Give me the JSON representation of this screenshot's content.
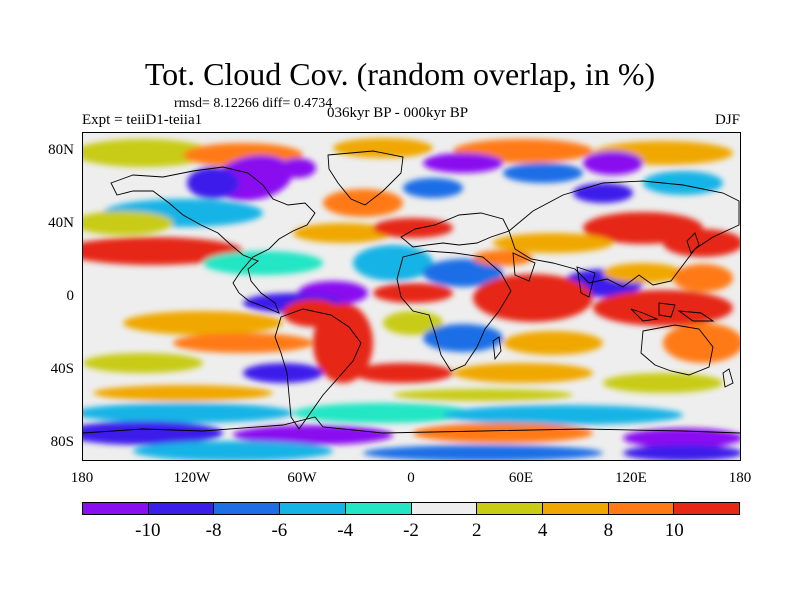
{
  "title": "Tot. Cloud Cov. (random overlap, in %)",
  "stats": "rmsd= 8.12266 diff= 0.4734",
  "experiment": "Expt = teiiD1-teiia1",
  "period": "036kyr BP - 000kyr BP",
  "season": "DJF",
  "axes": {
    "y_ticks": [
      "80N",
      "40N",
      "0",
      "40S",
      "80S"
    ],
    "x_ticks": [
      "180",
      "120W",
      "60W",
      "0",
      "60E",
      "120E",
      "180"
    ]
  },
  "colorbar": {
    "colors": [
      "#8a0ff0",
      "#3c1eeb",
      "#1e6ee6",
      "#14b4e6",
      "#22e6c4",
      "#eeeeee",
      "#c8cc14",
      "#f0a800",
      "#ff7a14",
      "#e62814"
    ],
    "labels": [
      "-10",
      "-8",
      "-6",
      "-4",
      "-2",
      "2",
      "4",
      "8",
      "10"
    ]
  }
}
